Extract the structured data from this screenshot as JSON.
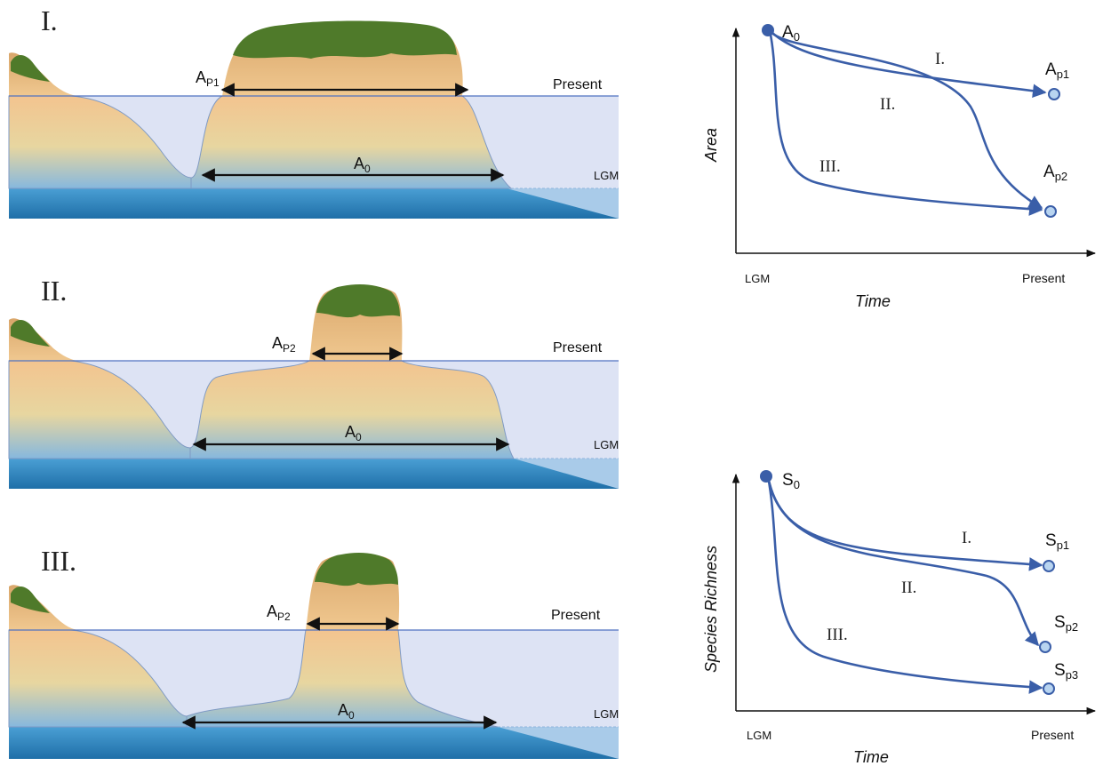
{
  "panels": [
    {
      "numeral": "I.",
      "island_label": "A",
      "island_sub": "P1",
      "base_label": "A",
      "base_sub": "0",
      "sea_label": "Present",
      "lgm_label": "LGM"
    },
    {
      "numeral": "II.",
      "island_label": "A",
      "island_sub": "P2",
      "base_label": "A",
      "base_sub": "0",
      "sea_label": "Present",
      "lgm_label": "LGM"
    },
    {
      "numeral": "III.",
      "island_label": "A",
      "island_sub": "P2",
      "base_label": "A",
      "base_sub": "0",
      "sea_label": "Present",
      "lgm_label": "LGM"
    }
  ],
  "area_graph": {
    "ylabel": "Area",
    "xlabel": "Time",
    "x_start": "LGM",
    "x_end": "Present",
    "start_label": "A",
    "start_sub": "0",
    "end1_label": "A",
    "end1_sub": "p1",
    "end2_label": "A",
    "end2_sub": "p2",
    "curve_labels": [
      "I.",
      "II.",
      "III."
    ]
  },
  "richness_graph": {
    "ylabel": "Species Richness",
    "xlabel": "Time",
    "x_start": "LGM",
    "x_end": "Present",
    "start_label": "S",
    "start_sub": "0",
    "end1_label": "S",
    "end1_sub": "p1",
    "end2_label": "S",
    "end2_sub": "p2",
    "end3_label": "S",
    "end3_sub": "p3",
    "curve_labels": [
      "I.",
      "II.",
      "III."
    ]
  },
  "colors": {
    "curve": "#3a5ea8",
    "water": "#dde3f4",
    "deep_sea": "#2e86c1",
    "land_top": "#f2c893",
    "land_bottom": "#7fb2dc",
    "vegetation": "#4f7a2a"
  }
}
